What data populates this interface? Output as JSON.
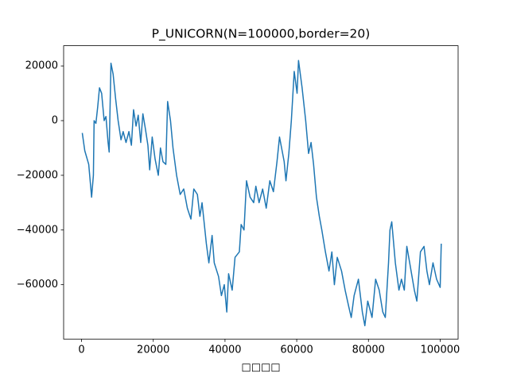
{
  "chart_data": {
    "type": "line",
    "title": "P_UNICORN(N=100000,border=20)",
    "x_label": "□□□□",
    "x": [
      200,
      900,
      2000,
      2800,
      3300,
      3500,
      4000,
      4500,
      5000,
      5600,
      6300,
      6800,
      7400,
      7700,
      8200,
      8800,
      9500,
      10200,
      11000,
      11600,
      12400,
      13200,
      13900,
      14500,
      15200,
      15800,
      16500,
      17100,
      17800,
      18500,
      19000,
      19700,
      20500,
      21400,
      22000,
      22700,
      23500,
      24000,
      24800,
      25500,
      26500,
      27500,
      28500,
      29500,
      30500,
      31300,
      32300,
      33000,
      33600,
      34800,
      35500,
      36400,
      37000,
      38200,
      39000,
      39800,
      40500,
      41000,
      42000,
      42800,
      44000,
      44500,
      45300,
      46000,
      47000,
      48000,
      48600,
      49500,
      50500,
      51500,
      52500,
      53500,
      54500,
      55200,
      56500,
      57000,
      57800,
      58500,
      59300,
      60100,
      60500,
      61500,
      62500,
      63300,
      64000,
      64700,
      65500,
      66300,
      67000,
      68000,
      69000,
      69800,
      70500,
      71300,
      72500,
      73500,
      74500,
      75200,
      76000,
      77200,
      78300,
      79000,
      79800,
      81000,
      82000,
      83000,
      84000,
      84700,
      85600,
      86000,
      86500,
      87500,
      88500,
      89200,
      90000,
      90700,
      91500,
      92800,
      93500,
      94500,
      95500,
      96300,
      97000,
      98000,
      99000,
      100000,
      100300
    ],
    "series": [
      {
        "color": "#1f77b4",
        "values": [
          -4500,
          -11000,
          -16000,
          -28000,
          -20000,
          0,
          -1000,
          5000,
          12000,
          10000,
          0,
          1500,
          -8000,
          -11500,
          21000,
          17000,
          8000,
          0,
          -7000,
          -4000,
          -8000,
          -4000,
          -9000,
          4000,
          -2000,
          2000,
          -8000,
          2500,
          -3000,
          -9000,
          -18000,
          -6000,
          -14000,
          -20000,
          -10000,
          -15000,
          -16000,
          7000,
          0,
          -10000,
          -20000,
          -27000,
          -25000,
          -32000,
          -36000,
          -25000,
          -27000,
          -35000,
          -30000,
          -45000,
          -52000,
          -42000,
          -52000,
          -57000,
          -64000,
          -60000,
          -70000,
          -56000,
          -62000,
          -50000,
          -48000,
          -38000,
          -40000,
          -22000,
          -28000,
          -30000,
          -24000,
          -30000,
          -25000,
          -32000,
          -22000,
          -26000,
          -15000,
          -6000,
          -15000,
          -22000,
          -12000,
          0,
          18000,
          10000,
          22000,
          12000,
          0,
          -12000,
          -8000,
          -16000,
          -28000,
          -35000,
          -40000,
          -48000,
          -55000,
          -48000,
          -60000,
          -50000,
          -55000,
          -62000,
          -68000,
          -72000,
          -64000,
          -58000,
          -70000,
          -75000,
          -66000,
          -72000,
          -58000,
          -62000,
          -70000,
          -72000,
          -52000,
          -40000,
          -37000,
          -52000,
          -62000,
          -58000,
          -62000,
          -46000,
          -52000,
          -62000,
          -66000,
          -48000,
          -46000,
          -55000,
          -60000,
          -52000,
          -58000,
          -61000,
          -45000
        ]
      }
    ],
    "xlim": [
      -5000,
      105000
    ],
    "ylim": [
      -79900,
      27400
    ],
    "xticks": [
      0,
      20000,
      40000,
      60000,
      80000,
      100000
    ],
    "yticks": [
      20000,
      0,
      {
        "value": -20000,
        "label": "−20000"
      },
      {
        "value": -40000,
        "label": "−40000"
      },
      {
        "value": -60000,
        "label": "−60000"
      }
    ]
  }
}
